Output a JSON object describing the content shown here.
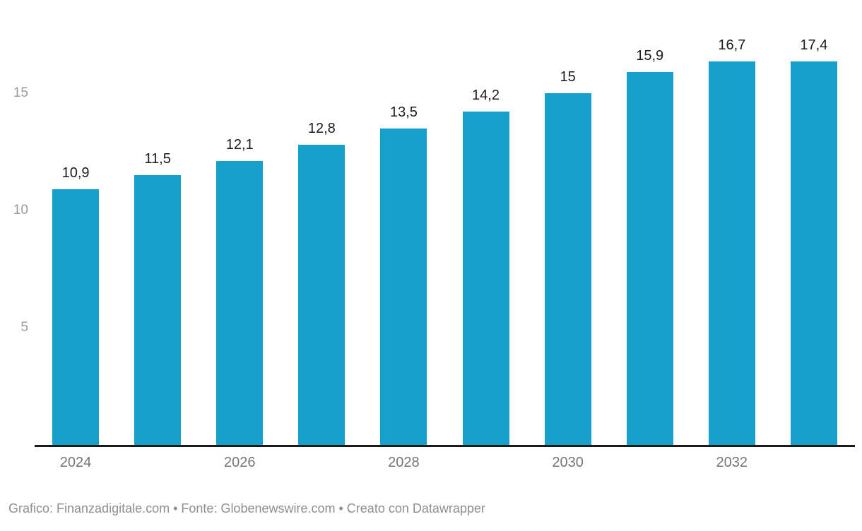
{
  "chart_data": {
    "type": "bar",
    "categories": [
      "2024",
      "",
      "2026",
      "",
      "2028",
      "",
      "2030",
      "",
      "2032",
      ""
    ],
    "values": [
      10.9,
      11.5,
      12.1,
      12.8,
      13.5,
      14.2,
      15,
      15.9,
      16.7,
      17.4
    ],
    "value_labels": [
      "10,9",
      "11,5",
      "12,1",
      "12,8",
      "13,5",
      "14,2",
      "15",
      "15,9",
      "16,7",
      "17,4"
    ],
    "x_tick_labels": [
      "2024",
      "",
      "2026",
      "",
      "2028",
      "",
      "2030",
      "",
      "2032",
      ""
    ],
    "y_ticks": [
      5,
      10,
      15
    ],
    "ylim": [
      0,
      17.4
    ],
    "title": "",
    "xlabel": "",
    "ylabel": "",
    "grid": false,
    "legend": false,
    "bar_color": "#18a0cc"
  },
  "colors": {
    "bar": "#18a0cc",
    "axis_line": "#1a1a1a",
    "value_label": "#1a1a1a",
    "x_tick_label": "#767676",
    "y_tick_label": "#9b9b9b",
    "footer_text": "#8f8f8f",
    "background": "#ffffff"
  },
  "footer": {
    "text": "Grafico: Finanzadigitale.com • Fonte: Globenewswire.com • Creato con Datawrapper"
  }
}
